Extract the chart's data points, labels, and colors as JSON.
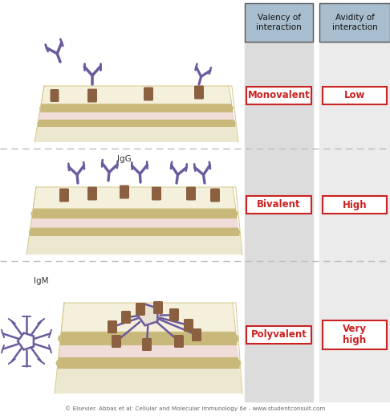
{
  "footer": "© Elsevier. Abbas et al: Cellular and Molecular Immunology 6e - www.studentconsult.com",
  "header_col1": "Valency of\ninteraction",
  "header_col2": "Avidity of\ninteraction",
  "colors": {
    "background": "#ffffff",
    "cell_top": "#f5f0dc",
    "cell_outline": "#d4c88a",
    "membrane_tan1": "#c8b87a",
    "membrane_pink": "#f0dcd8",
    "membrane_tan2": "#c8b87a",
    "cell_base": "#ece8d0",
    "antibody": "#6b5b9e",
    "antigen": "#8b6040",
    "header_bg": "#a8bece",
    "shade_col1": "#dcdcdc",
    "shade_col2": "#ebebeb",
    "label_red": "#cc2222",
    "border_dark": "#555555",
    "border_label": "#cc2222",
    "dashed": "#bbbbbb",
    "text_dark": "#333333",
    "footer_col": "#666666",
    "igm_face": "#ffffff"
  },
  "figsize": [
    4.86,
    5.18
  ],
  "dpi": 100
}
